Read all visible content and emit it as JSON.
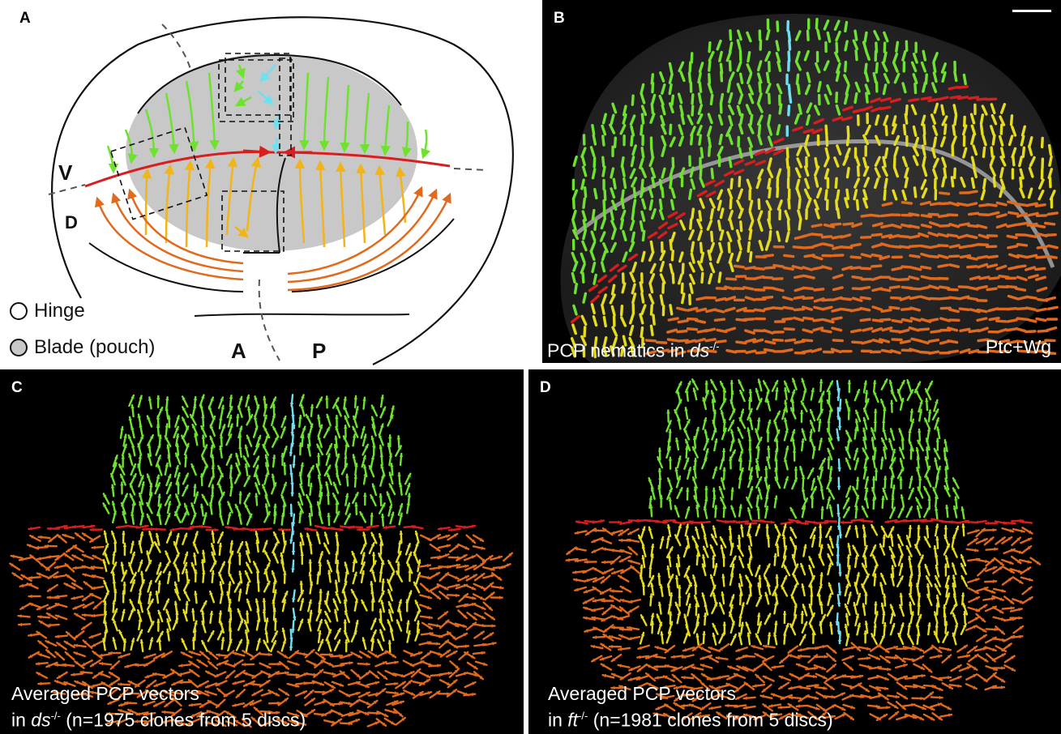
{
  "panels": {
    "a": {
      "label": "A",
      "letters": {
        "v": "V",
        "d": "D",
        "a": "A",
        "p": "P"
      },
      "legend": [
        {
          "label": "Hinge",
          "fill": "#ffffff"
        },
        {
          "label": "Blade (pouch)",
          "fill": "#c8c8c8"
        }
      ]
    },
    "b": {
      "label": "B",
      "caption_prefix": "PCP nematics in ",
      "caption_genotype": "ds",
      "caption_sup": "-/-",
      "stain": "Ptc+Wg"
    },
    "c": {
      "label": "C",
      "caption_line1": "Averaged PCP vectors",
      "caption_in": "in ",
      "caption_genotype": "ds",
      "caption_sup": "-/-",
      "caption_rest": " (n=1975 clones from 5 discs)"
    },
    "d": {
      "label": "D",
      "caption_line1": "Averaged PCP vectors",
      "caption_in": "in ",
      "caption_genotype": "ft",
      "caption_sup": "-/-",
      "caption_rest": " (n=1981 clones from 5 discs)"
    }
  },
  "colors": {
    "green": "#6fe22f",
    "cyan": "#6fe0f0",
    "red": "#d81e1e",
    "yellow": "#e6dc1e",
    "orange": "#e06a1e",
    "blade": "#c8c8c8"
  }
}
